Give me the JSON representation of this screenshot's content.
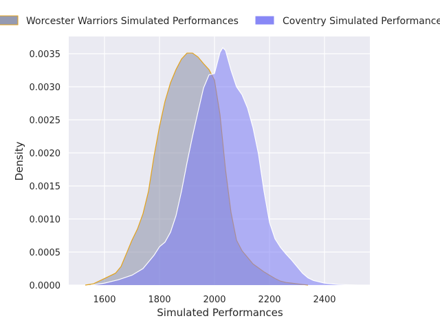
{
  "chart_data": {
    "type": "area",
    "xlabel": "Simulated Performances",
    "ylabel": "Density",
    "xlim": [
      1450,
      2550
    ],
    "ylim": [
      0,
      0.0035
    ],
    "xticks": [
      1600,
      1800,
      2000,
      2200,
      2400
    ],
    "yticks": [
      0.0,
      0.0005,
      0.001,
      0.0015,
      0.002,
      0.0025,
      0.003,
      0.0035
    ],
    "ytick_labels": [
      "0.0000",
      "0.0005",
      "0.0010",
      "0.0015",
      "0.0020",
      "0.0025",
      "0.0030",
      "0.0035"
    ],
    "grid": true,
    "legend_position": "top",
    "series": [
      {
        "name": "Worcester Warriors Simulated Performances",
        "color": "#8a8fa8",
        "edge_color": "#e3a21a",
        "x": [
          1530,
          1560,
          1600,
          1640,
          1660,
          1680,
          1700,
          1720,
          1740,
          1760,
          1780,
          1800,
          1820,
          1840,
          1860,
          1880,
          1900,
          1920,
          1940,
          1960,
          1980,
          2000,
          2020,
          2040,
          2060,
          2080,
          2100,
          2120,
          2140,
          2160,
          2180,
          2200,
          2220,
          2240,
          2260,
          2280,
          2300,
          2320,
          2340
        ],
        "values": [
          0.0,
          2e-05,
          0.0001,
          0.00018,
          0.00028,
          0.00048,
          0.00068,
          0.00085,
          0.00108,
          0.00142,
          0.00195,
          0.0024,
          0.00278,
          0.00306,
          0.00326,
          0.00342,
          0.00351,
          0.00351,
          0.00345,
          0.00335,
          0.00326,
          0.0031,
          0.00258,
          0.00175,
          0.0011,
          0.00068,
          0.00052,
          0.00042,
          0.00032,
          0.00026,
          0.0002,
          0.00015,
          0.0001,
          6e-05,
          4e-05,
          3e-05,
          2e-05,
          1e-05,
          0.0
        ]
      },
      {
        "name": "Coventry Simulated Performances",
        "color": "#7b7bf5",
        "edge_color": "#ffffff",
        "x": [
          1550,
          1600,
          1650,
          1700,
          1740,
          1780,
          1800,
          1820,
          1840,
          1860,
          1880,
          1900,
          1920,
          1940,
          1960,
          1980,
          2000,
          2020,
          2030,
          2040,
          2060,
          2080,
          2100,
          2120,
          2140,
          2160,
          2180,
          2200,
          2220,
          2240,
          2260,
          2280,
          2300,
          2320,
          2340,
          2360,
          2400,
          2450,
          2520
        ],
        "values": [
          0.0,
          3e-05,
          8e-05,
          0.00015,
          0.00025,
          0.00045,
          0.00058,
          0.00065,
          0.0008,
          0.00105,
          0.00142,
          0.00185,
          0.00225,
          0.00262,
          0.00298,
          0.00318,
          0.0032,
          0.00352,
          0.00359,
          0.00355,
          0.00325,
          0.003,
          0.00288,
          0.00268,
          0.00238,
          0.00198,
          0.00142,
          0.00095,
          0.0007,
          0.00057,
          0.00047,
          0.00038,
          0.00028,
          0.00018,
          0.00011,
          7e-05,
          3e-05,
          1e-05,
          0.0
        ]
      }
    ]
  }
}
